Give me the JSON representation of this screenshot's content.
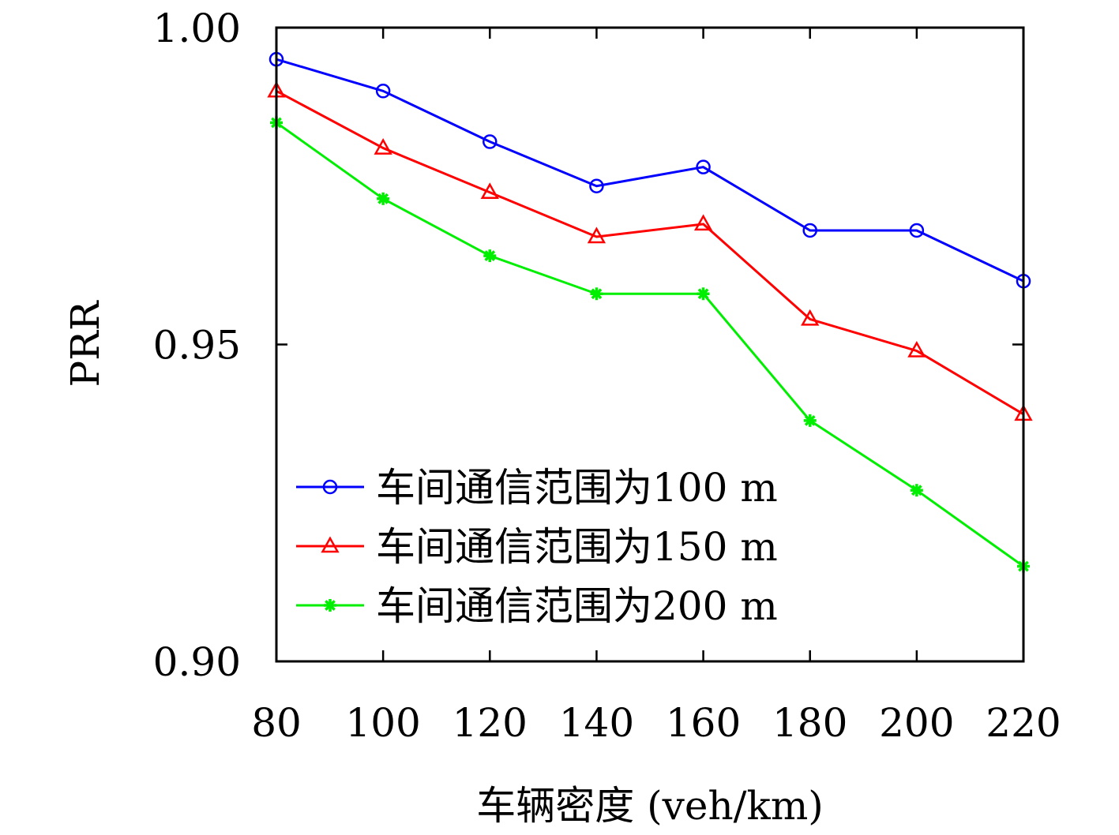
{
  "chart_data": {
    "type": "line",
    "x": [
      80,
      100,
      120,
      140,
      160,
      180,
      200,
      220
    ],
    "x_ticks": [
      "80",
      "100",
      "120",
      "140",
      "160",
      "180",
      "200",
      "220"
    ],
    "y_ticks": [
      "0.90",
      "0.95",
      "1.00"
    ],
    "ylim": [
      0.9,
      1.0
    ],
    "xlim": [
      80,
      220
    ],
    "xlabel": "车辆密度 (veh/km)",
    "ylabel": "PRR",
    "grid": false,
    "legend_position": "bottom-left",
    "series": [
      {
        "name": "车间通信范围为100 m",
        "color": "#0000ff",
        "marker": "circle",
        "values": [
          0.995,
          0.99,
          0.982,
          0.975,
          0.978,
          0.968,
          0.968,
          0.96
        ]
      },
      {
        "name": "车间通信范围为150 m",
        "color": "#ff0000",
        "marker": "triangle",
        "values": [
          0.99,
          0.981,
          0.974,
          0.967,
          0.969,
          0.954,
          0.949,
          0.939
        ]
      },
      {
        "name": "车间通信范围为200 m",
        "color": "#00ee00",
        "marker": "star",
        "values": [
          0.985,
          0.973,
          0.964,
          0.958,
          0.958,
          0.938,
          0.927,
          0.915
        ]
      }
    ]
  }
}
